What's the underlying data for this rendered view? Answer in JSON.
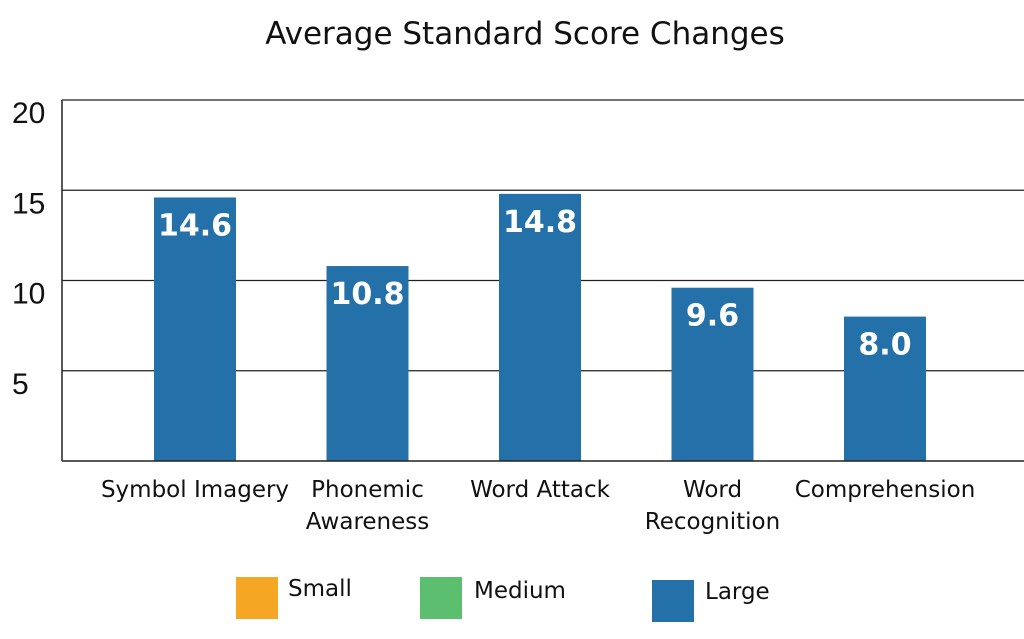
{
  "chart_data": {
    "type": "bar",
    "title": "Average Standard Score Changes",
    "xlabel": "",
    "ylabel": "",
    "categories": [
      [
        "Symbol Imagery"
      ],
      [
        "Phonemic",
        "Awareness"
      ],
      [
        "Word Attack"
      ],
      [
        "Word",
        "Recognition"
      ],
      [
        "Comprehension"
      ]
    ],
    "values": [
      14.6,
      10.8,
      14.8,
      9.6,
      8.0
    ],
    "data_labels": [
      "14.6",
      "10.8",
      "14.8",
      "9.6",
      "8.0"
    ],
    "ylim": [
      0,
      20
    ],
    "yticks": [
      5,
      10,
      15,
      20
    ],
    "grid": true,
    "legend": {
      "placement": "bottom",
      "entries": [
        {
          "label": "Small",
          "color": "#F5A623"
        },
        {
          "label": "Medium",
          "color": "#5CBF70"
        },
        {
          "label": "Large",
          "color": "#2470A8"
        }
      ]
    },
    "bar_color": "#2470A8"
  }
}
